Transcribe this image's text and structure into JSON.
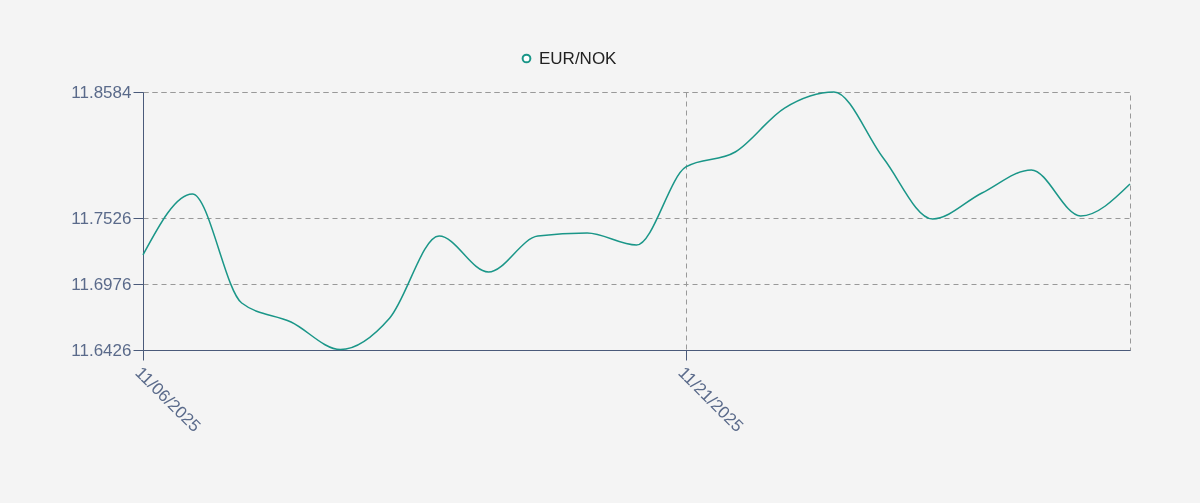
{
  "chart_data": {
    "type": "line",
    "categories": [
      "11/06/2025",
      null,
      null,
      null,
      null,
      null,
      null,
      null,
      null,
      null,
      null,
      "11/21/2025",
      null,
      null,
      null,
      null,
      null,
      null,
      null,
      null,
      null
    ],
    "series": [
      {
        "name": "EUR/NOK",
        "color": "#1a9688",
        "values": [
          11.7221,
          11.7731,
          11.6819,
          11.666,
          11.643,
          11.6694,
          11.7379,
          11.7078,
          11.7379,
          11.7405,
          11.7304,
          11.7957,
          11.8082,
          11.845,
          11.8584,
          11.8032,
          11.7522,
          11.7739,
          11.7932,
          11.7547,
          11.7814
        ]
      }
    ],
    "ylim": [
      11.6426,
      11.8584
    ],
    "yticks": [
      11.6426,
      11.6976,
      11.7526,
      11.8584
    ],
    "grid": true,
    "legend": "top",
    "line_style": "solid"
  }
}
